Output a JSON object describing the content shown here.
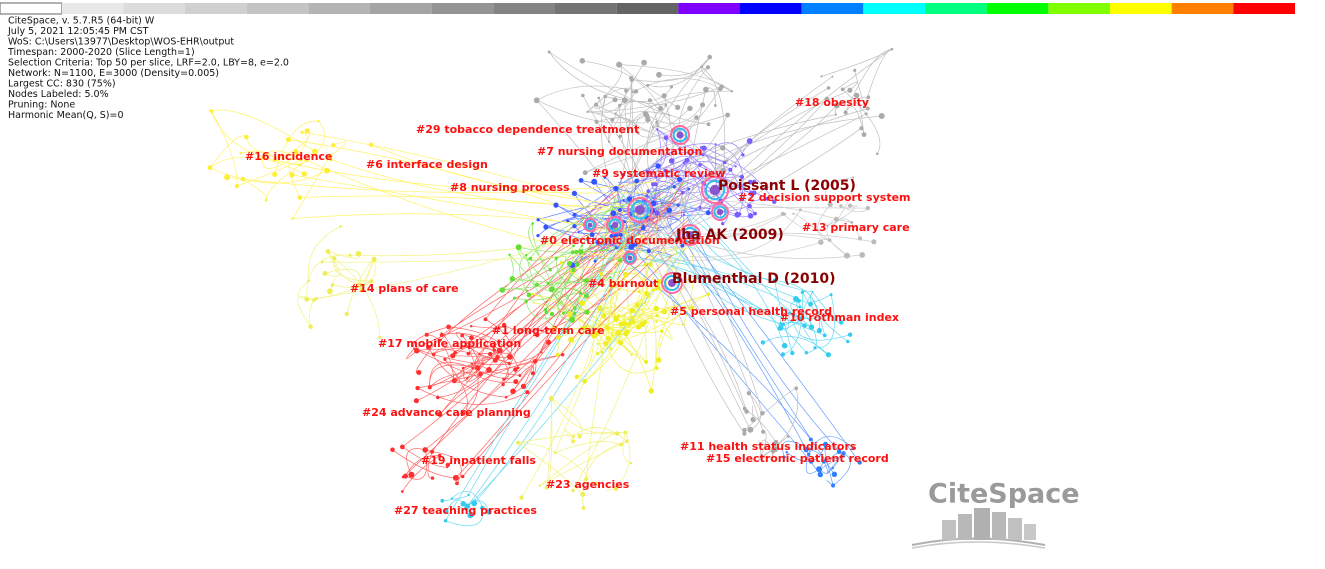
{
  "header": {
    "lines": [
      "CiteSpace, v. 5.7.R5 (64-bit) W",
      "July 5, 2021 12:05:45 PM CST",
      "WoS: C:\\Users\\13977\\Desktop\\WOS-EHR\\output",
      "Timespan: 2000-2020 (Slice Length=1)",
      "Selection Criteria: Top 50 per slice, LRF=2.0, LBY=8, e=2.0",
      "Network: N=1100, E=3000 (Density=0.005)",
      "Largest CC: 830 (75%)",
      "Nodes Labeled: 5.0%",
      "Pruning: None",
      "Harmonic Mean(Q, S)=0"
    ]
  },
  "clusters": [
    "#29 tobacco dependence treatment",
    "#16 incidence",
    "#6 interface design",
    "#7 nursing documentation",
    "#9 systematic review",
    "#8 nursing process",
    "#18 obesity",
    "#2 decision support system",
    "#13 primary care",
    "#0 electronic documentation",
    "#14 plans of care",
    "#4 burnout",
    "#5 personal health record",
    "#10 rothman index",
    "#1 long-term care",
    "#17 mobile application",
    "#24 advance care planning",
    "#11 health status indicators",
    "#15 electronic patient record",
    "#19 inpatient falls",
    "#23 agencies",
    "#27 teaching practices"
  ],
  "authors": [
    "Poissant L (2005)",
    "Jha AK (2009)",
    "Blumenthal D (2010)"
  ],
  "logo": "CiteSpace"
}
